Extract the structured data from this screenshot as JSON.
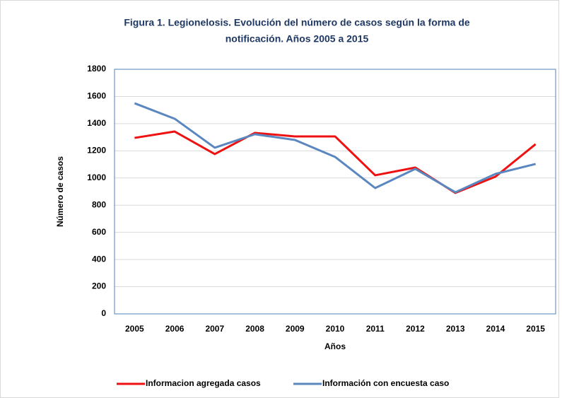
{
  "chart_data": {
    "type": "line",
    "title": [
      "Figura 1. Legionelosis. Evolución del número de casos según la forma de",
      "notificación. Años 2005 a 2015"
    ],
    "x_label": "Años",
    "y_label": "Número de casos",
    "categories": [
      "2005",
      "2006",
      "2007",
      "2008",
      "2009",
      "2010",
      "2011",
      "2012",
      "2013",
      "2014",
      "2015"
    ],
    "series": [
      {
        "name": "Informacion agregada casos",
        "color": "#ee1111",
        "values": [
          1295,
          1342,
          1176,
          1332,
          1306,
          1306,
          1020,
          1077,
          890,
          1010,
          1249
        ]
      },
      {
        "name": "Información con encuesta caso",
        "color": "#5b87c0",
        "values": [
          1550,
          1436,
          1223,
          1322,
          1280,
          1155,
          926,
          1067,
          895,
          1030,
          1103
        ]
      }
    ],
    "ylim": [
      0,
      1800
    ],
    "yticks": [
      0,
      200,
      400,
      600,
      800,
      1000,
      1200,
      1400,
      1600,
      1800
    ],
    "grid": true,
    "legend": "bottom"
  }
}
